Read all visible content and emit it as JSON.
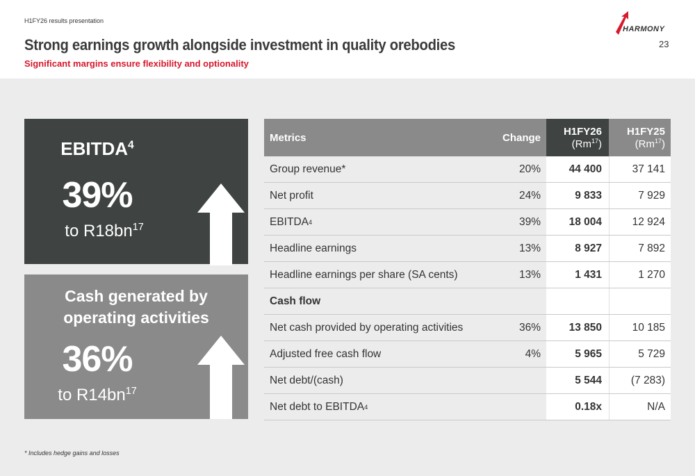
{
  "header": {
    "breadcrumb": "H1FY26 results presentation",
    "title": "Strong earnings growth alongside investment in quality orebodies",
    "subtitle": "Significant margins ensure flexibility and optionality",
    "page_number": "23",
    "logo_text": "HARMONY"
  },
  "colors": {
    "accent_red": "#d7192d",
    "dark_card": "#3f4443",
    "grey_card": "#8a8a8a",
    "background": "#ececec"
  },
  "cards": [
    {
      "title": "EBITDA",
      "title_sup": "4",
      "percent": "39%",
      "sub": "to R18bn",
      "sub_sup": "17",
      "icon": "up-arrow-icon"
    },
    {
      "title": "Cash generated by operating activities",
      "percent": "36%",
      "sub": "to R14bn",
      "sub_sup": "17",
      "icon": "up-arrow-icon"
    }
  ],
  "table": {
    "headers": {
      "metrics": "Metrics",
      "change": "Change",
      "h1fy26": "H1FY26",
      "h1fy26_unit": "(Rm",
      "h1fy26_unit_sup": "17",
      "h1fy26_unit_close": ")",
      "h1fy25": "H1FY25",
      "h1fy25_unit": "(Rm",
      "h1fy25_unit_sup": "17",
      "h1fy25_unit_close": ")"
    },
    "rows": [
      {
        "metric": "Group revenue*",
        "change": "20%",
        "h1fy26": "44 400",
        "h1fy25": "37 141"
      },
      {
        "metric": "Net profit",
        "change": "24%",
        "h1fy26": "9 833",
        "h1fy25": "7 929"
      },
      {
        "metric": "EBITDA",
        "metric_sup": "4",
        "change": "39%",
        "h1fy26": "18 004",
        "h1fy25": "12 924"
      },
      {
        "metric": "Headline earnings",
        "change": "13%",
        "h1fy26": "8 927",
        "h1fy25": "7 892"
      },
      {
        "metric": "Headline earnings per share (SA cents)",
        "change": "13%",
        "h1fy26": "1 431",
        "h1fy25": "1 270"
      },
      {
        "metric": "Cash flow",
        "change": "",
        "h1fy26": "",
        "h1fy25": ""
      },
      {
        "metric": "Net cash provided by operating activities",
        "change": "36%",
        "h1fy26": "13 850",
        "h1fy25": "10 185"
      },
      {
        "metric": "Adjusted free cash flow",
        "change": "4%",
        "h1fy26": "5 965",
        "h1fy25": "5 729"
      },
      {
        "metric": "Net debt/(cash)",
        "change": "",
        "h1fy26": "5 544",
        "h1fy25": "(7 283)"
      },
      {
        "metric": "Net debt to EBITDA",
        "metric_sup": "4",
        "change": "",
        "h1fy26": "0.18x",
        "h1fy25": "N/A"
      }
    ]
  },
  "footnote": "* Includes hedge gains and losses"
}
